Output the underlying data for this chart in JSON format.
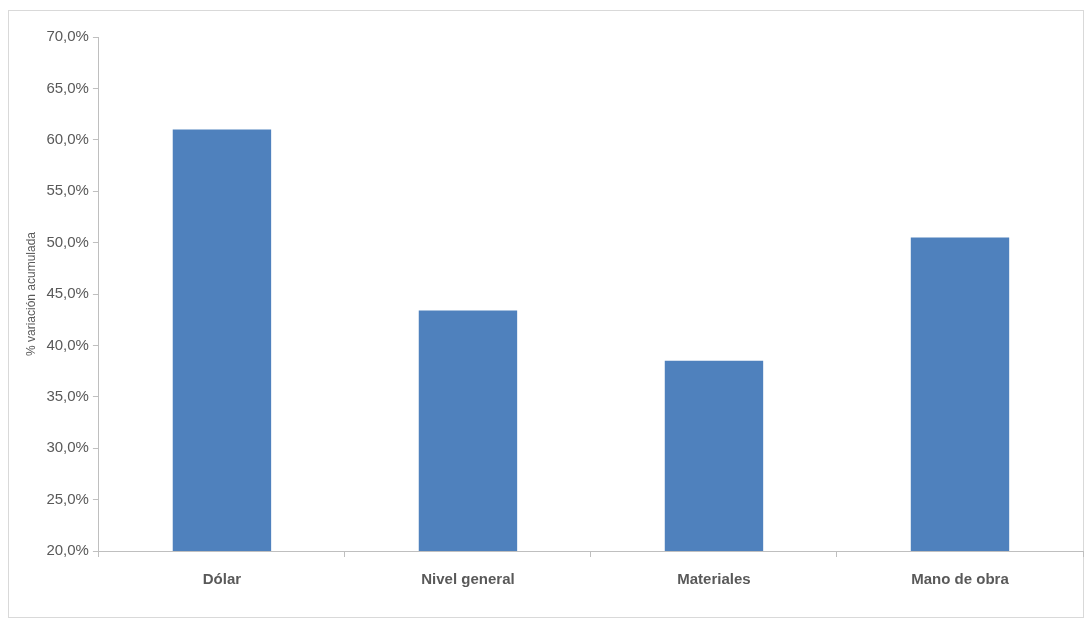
{
  "chart_data": {
    "type": "bar",
    "ylabel": "% variación acumulada",
    "categories": [
      "Dólar",
      "Nivel general",
      "Materiales",
      "Mano de obra"
    ],
    "values": [
      61.0,
      43.4,
      38.5,
      50.5
    ],
    "color": "#4f81bd",
    "ylim": [
      20,
      70
    ],
    "yticks": [
      {
        "value": 20,
        "label": "20,0%"
      },
      {
        "value": 25,
        "label": "25,0%"
      },
      {
        "value": 30,
        "label": "30,0%"
      },
      {
        "value": 35,
        "label": "35,0%"
      },
      {
        "value": 40,
        "label": "40,0%"
      },
      {
        "value": 45,
        "label": "45,0%"
      },
      {
        "value": 50,
        "label": "50,0%"
      },
      {
        "value": 55,
        "label": "55,0%"
      },
      {
        "value": 60,
        "label": "60,0%"
      },
      {
        "value": 65,
        "label": "65,0%"
      },
      {
        "value": 70,
        "label": "70,0%"
      }
    ],
    "grid": false,
    "legend": false
  }
}
